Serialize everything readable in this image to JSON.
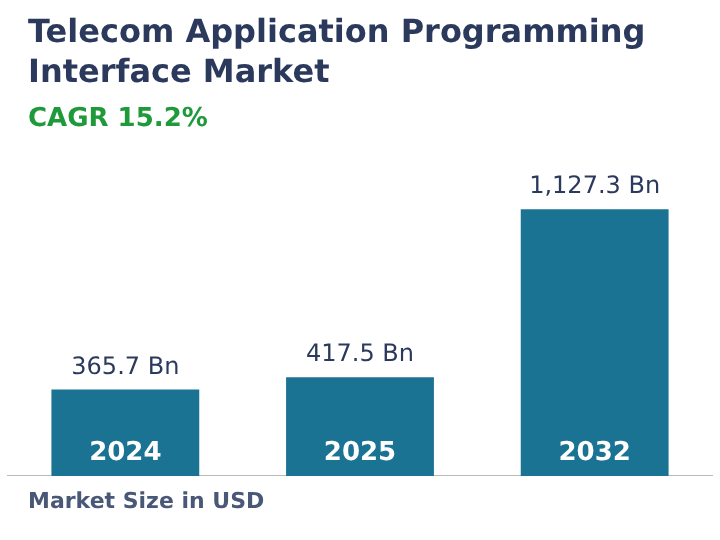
{
  "chart_data": {
    "type": "bar",
    "title": "Telecom Application Programming Interface Market",
    "subtitle": "CAGR 15.2%",
    "categories": [
      "2024",
      "2025",
      "2032"
    ],
    "values": [
      365.7,
      417.5,
      1127.3
    ],
    "value_labels": [
      "365.7 Bn",
      "417.5 Bn",
      "1,127.3 Bn"
    ],
    "color": "#1a7393",
    "annotations": [
      "Market Size in USD"
    ],
    "legend": false,
    "grid": false
  }
}
